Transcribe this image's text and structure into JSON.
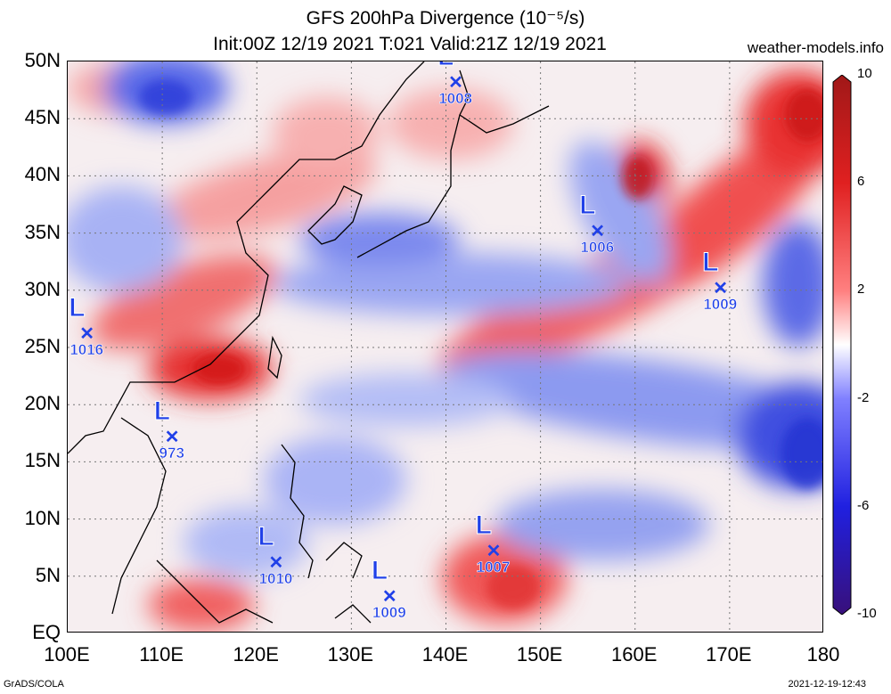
{
  "title": {
    "line1": "GFS 200hPa Divergence (10⁻⁵/s)",
    "line2": "Init:00Z 12/19 2021 T:021 Valid:21Z 12/19 2021"
  },
  "site": "weather-models.info",
  "footer": {
    "left": "GrADS/COLA",
    "right": "2021-12-19-12:43"
  },
  "axes": {
    "lon_range": [
      100,
      180
    ],
    "lat_range": [
      0,
      50
    ],
    "lat_labels": [
      "50N",
      "45N",
      "40N",
      "35N",
      "30N",
      "25N",
      "20N",
      "15N",
      "10N",
      "5N",
      "EQ"
    ],
    "lon_labels": [
      "100E",
      "110E",
      "120E",
      "130E",
      "140E",
      "150E",
      "160E",
      "170E",
      "180"
    ],
    "grid": true
  },
  "colorbar": {
    "labels": [
      "10",
      "6",
      "2",
      "-2",
      "-6",
      "-10"
    ],
    "colors": [
      "#a01818",
      "#e02020",
      "#ff8080",
      "#ffffff",
      "#8080ff",
      "#2020e0",
      "#38107a"
    ]
  },
  "lows": [
    {
      "label": "1008",
      "lon": 141,
      "lat": 48
    },
    {
      "label": "1006",
      "lon": 156,
      "lat": 35
    },
    {
      "label": "1009",
      "lon": 169,
      "lat": 30
    },
    {
      "label": "1016",
      "lon": 102,
      "lat": 26
    },
    {
      "label": "973",
      "lon": 111,
      "lat": 17
    },
    {
      "label": "1010",
      "lon": 122,
      "lat": 6
    },
    {
      "label": "1007",
      "lon": 145,
      "lat": 7
    },
    {
      "label": "1009",
      "lon": 134,
      "lat": 3
    }
  ],
  "marker": {
    "letter": "L",
    "color": "#2040e8"
  }
}
